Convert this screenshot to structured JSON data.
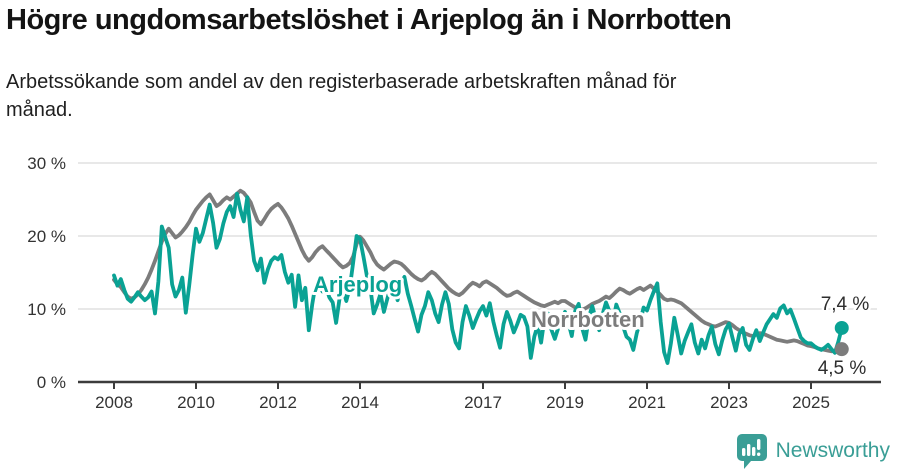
{
  "header": {
    "title": "Högre ungdomsarbetslöshet i Arjeplog än i Norrbotten",
    "subtitle": "Arbetssökande som andel av den registerbaserade arbetskraften månad för månad."
  },
  "footer": {
    "brand": "Newsworthy"
  },
  "colors": {
    "arjeplog": "#0aa294",
    "norrbotten": "#7c7c7c",
    "brand_teal": "#3a9e96",
    "grid": "#d9d9d9",
    "axis": "#3c3c3c",
    "text": "#333333"
  },
  "chart_data": {
    "type": "line",
    "unit": "%",
    "frequency": "monthly",
    "x_start": "2008-01",
    "x_end": "2025-10",
    "ylim": [
      0,
      33
    ],
    "grid": "horizontal",
    "y_ticks": [
      {
        "value": 0,
        "label": "0 %"
      },
      {
        "value": 10,
        "label": "10 %"
      },
      {
        "value": 20,
        "label": "20 %"
      },
      {
        "value": 30,
        "label": "30 %"
      }
    ],
    "x_ticks": [
      {
        "value": 2008,
        "label": "2008"
      },
      {
        "value": 2010,
        "label": "2010"
      },
      {
        "value": 2012,
        "label": "2012"
      },
      {
        "value": 2014,
        "label": "2014"
      },
      {
        "value": 2017,
        "label": "2017"
      },
      {
        "value": 2019,
        "label": "2019"
      },
      {
        "value": 2021,
        "label": "2021"
      },
      {
        "value": 2023,
        "label": "2023"
      },
      {
        "value": 2025,
        "label": "2025"
      }
    ],
    "series": [
      {
        "name": "Norrbotten",
        "color": "#7c7c7c",
        "end_label": "4,5 %",
        "end_value": 4.5,
        "values": [
          14.0,
          13.4,
          13.0,
          12.3,
          11.7,
          11.4,
          11.6,
          12.0,
          12.6,
          13.4,
          14.3,
          15.4,
          16.6,
          17.9,
          19.2,
          20.3,
          21.0,
          20.4,
          19.8,
          20.1,
          20.6,
          21.2,
          21.9,
          22.8,
          23.6,
          24.2,
          24.8,
          25.3,
          25.7,
          24.9,
          24.1,
          24.4,
          24.9,
          25.3,
          25.0,
          25.4,
          25.8,
          26.2,
          25.9,
          25.3,
          24.6,
          23.3,
          22.1,
          21.6,
          22.3,
          23.1,
          23.7,
          24.1,
          24.4,
          23.9,
          23.2,
          22.4,
          21.4,
          20.3,
          19.2,
          18.1,
          17.2,
          16.6,
          17.1,
          17.8,
          18.3,
          18.6,
          18.1,
          17.6,
          17.1,
          16.6,
          16.1,
          15.7,
          15.9,
          16.3,
          17.2,
          18.9,
          19.9,
          19.4,
          18.6,
          17.8,
          16.8,
          16.1,
          15.7,
          15.4,
          15.8,
          16.2,
          16.5,
          16.4,
          16.2,
          15.8,
          15.3,
          14.8,
          14.4,
          14.1,
          13.9,
          14.2,
          14.7,
          15.1,
          14.8,
          14.3,
          13.8,
          13.3,
          12.8,
          12.4,
          12.1,
          11.9,
          12.2,
          12.7,
          13.2,
          13.6,
          13.4,
          13.1,
          13.6,
          13.8,
          13.5,
          13.2,
          12.9,
          12.5,
          12.1,
          11.8,
          11.9,
          12.2,
          12.4,
          12.1,
          11.8,
          11.5,
          11.2,
          10.9,
          10.7,
          10.5,
          10.4,
          10.6,
          10.8,
          11.0,
          10.8,
          11.1,
          11.1,
          10.8,
          10.5,
          10.2,
          10.0,
          9.9,
          10.1,
          10.4,
          10.7,
          10.9,
          11.1,
          11.4,
          11.7,
          11.5,
          11.9,
          12.4,
          12.8,
          12.6,
          12.3,
          12.1,
          12.4,
          12.7,
          12.9,
          12.6,
          12.9,
          13.2,
          12.8,
          12.4,
          11.9,
          11.4,
          11.2,
          11.3,
          11.2,
          11.0,
          10.8,
          10.4,
          10.0,
          9.6,
          9.2,
          8.8,
          8.4,
          8.1,
          7.9,
          7.7,
          7.6,
          7.8,
          8.0,
          8.2,
          8.1,
          7.8,
          7.4,
          7.1,
          6.8,
          6.6,
          6.4,
          6.3,
          6.5,
          6.7,
          6.6,
          6.4,
          6.2,
          6.0,
          5.8,
          5.7,
          5.6,
          5.5,
          5.6,
          5.7,
          5.6,
          5.4,
          5.2,
          5.0,
          4.9,
          4.8,
          4.6,
          4.5,
          4.4,
          4.3,
          4.2,
          4.3,
          4.4,
          4.5
        ]
      },
      {
        "name": "Arjeplog",
        "color": "#0aa294",
        "end_label": "7,4 %",
        "end_value": 7.4,
        "values": [
          14.6,
          13.2,
          14.1,
          12.6,
          11.4,
          11.0,
          11.6,
          12.3,
          11.7,
          11.2,
          11.6,
          12.4,
          9.4,
          13.8,
          21.3,
          19.8,
          18.4,
          13.4,
          11.7,
          12.6,
          14.3,
          9.5,
          13.2,
          17.4,
          21.0,
          19.2,
          20.4,
          22.4,
          24.3,
          21.8,
          18.4,
          19.6,
          21.7,
          23.3,
          24.1,
          22.6,
          25.8,
          23.6,
          22.0,
          25.3,
          20.2,
          16.6,
          15.3,
          16.9,
          13.6,
          15.4,
          16.6,
          17.1,
          16.8,
          17.4,
          15.1,
          13.6,
          14.7,
          10.3,
          14.6,
          11.2,
          12.9,
          7.1,
          10.6,
          13.4,
          13.9,
          12.4,
          13.1,
          11.6,
          10.9,
          8.1,
          11.4,
          12.7,
          11.1,
          12.9,
          16.4,
          20.0,
          19.6,
          17.2,
          14.6,
          12.9,
          9.4,
          10.6,
          12.1,
          9.6,
          11.4,
          13.1,
          12.4,
          11.2,
          13.6,
          14.4,
          12.1,
          10.4,
          8.6,
          6.9,
          9.2,
          10.4,
          12.3,
          11.2,
          9.4,
          8.2,
          10.6,
          12.3,
          10.7,
          7.2,
          5.4,
          4.6,
          8.2,
          10.4,
          9.1,
          7.4,
          8.6,
          9.7,
          10.4,
          9.1,
          10.8,
          8.3,
          6.4,
          4.7,
          7.9,
          9.6,
          8.4,
          6.8,
          7.9,
          9.2,
          8.9,
          7.6,
          3.3,
          6.2,
          7.8,
          5.4,
          8.7,
          9.4,
          7.2,
          5.9,
          7.4,
          8.6,
          9.6,
          8.1,
          6.3,
          9.8,
          10.7,
          7.4,
          5.8,
          8.9,
          10.4,
          8.6,
          7.1,
          9.3,
          10.9,
          9.7,
          8.2,
          10.6,
          9.4,
          7.6,
          6.2,
          5.8,
          4.4,
          6.7,
          8.3,
          10.2,
          9.8,
          11.2,
          12.4,
          13.5,
          8.2,
          4.1,
          2.6,
          5.3,
          8.8,
          6.4,
          3.9,
          5.6,
          6.8,
          7.9,
          5.4,
          3.9,
          5.8,
          4.6,
          6.4,
          7.6,
          5.2,
          3.8,
          5.7,
          7.2,
          8.0,
          6.1,
          4.3,
          6.6,
          7.4,
          5.1,
          4.4,
          5.9,
          7.1,
          5.6,
          6.8,
          7.9,
          8.6,
          9.3,
          8.8,
          10.1,
          10.5,
          9.4,
          9.9,
          8.7,
          7.4,
          6.1,
          5.6,
          5.3,
          5.3,
          4.9,
          4.6,
          4.4,
          4.7,
          5.1,
          4.5,
          4.0,
          5.5,
          7.4
        ]
      }
    ]
  }
}
